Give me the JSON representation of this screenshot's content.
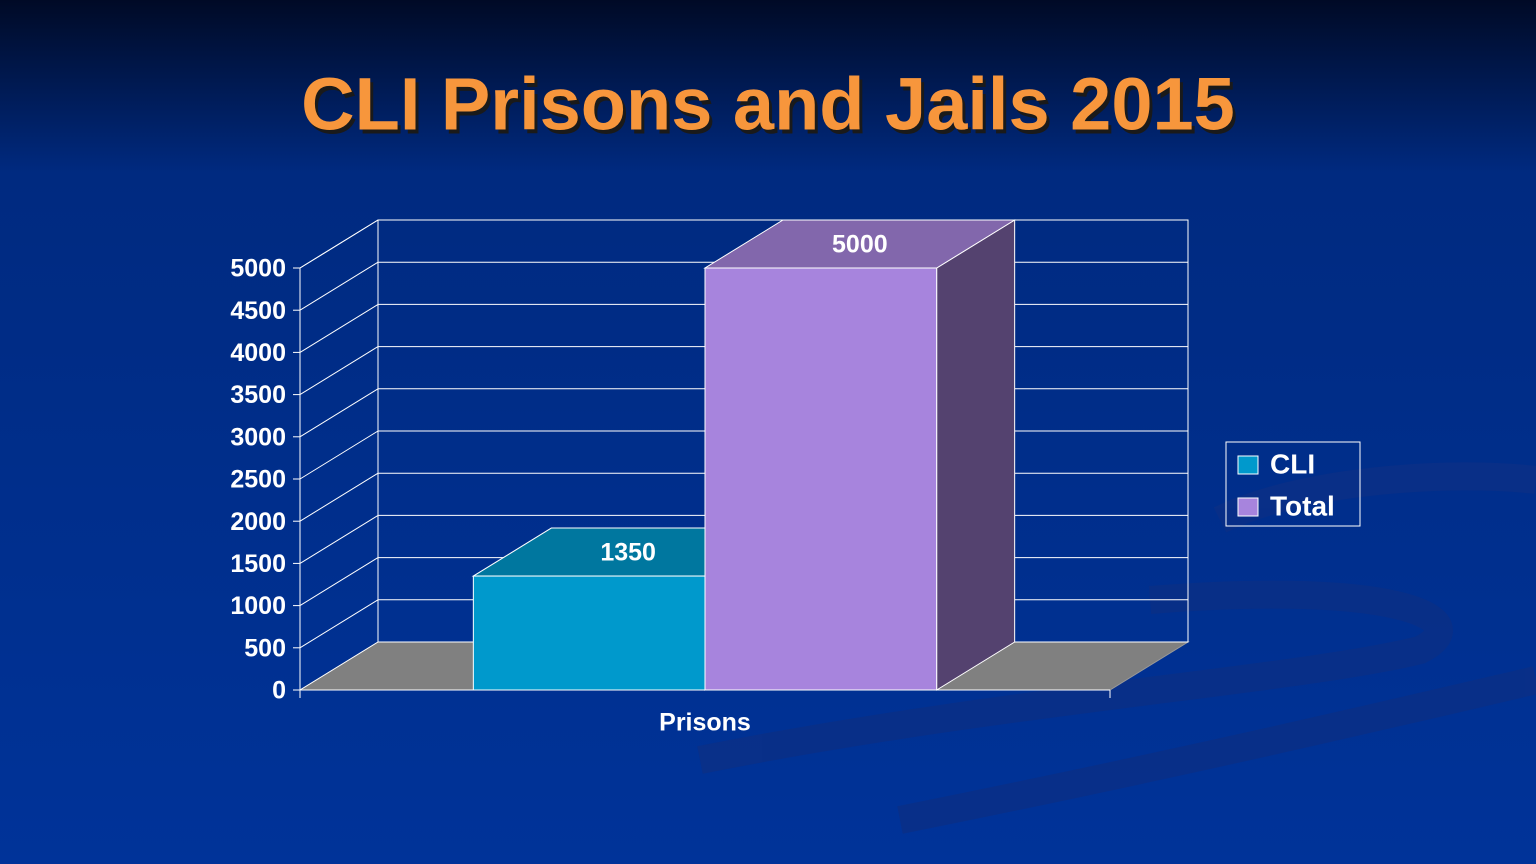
{
  "chart_data": {
    "type": "bar",
    "title": "CLI Prisons and Jails 2015",
    "categories": [
      "Prisons"
    ],
    "series": [
      {
        "name": "CLI",
        "color": "#0099cc",
        "values": [
          1350
        ]
      },
      {
        "name": "Total",
        "color": "#a784dd",
        "values": [
          5000
        ]
      }
    ],
    "ylim": [
      0,
      5000
    ],
    "yticks": [
      0,
      500,
      1000,
      1500,
      2000,
      2500,
      3000,
      3500,
      4000,
      4500,
      5000
    ],
    "grid": true,
    "legend": "right"
  }
}
